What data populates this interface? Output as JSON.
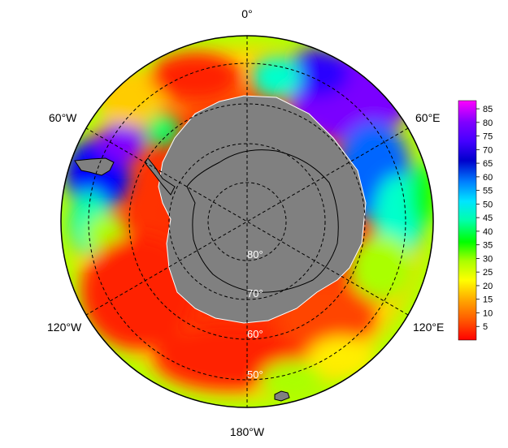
{
  "map": {
    "projection": "south-polar-stereographic",
    "longitude_labels": {
      "top": "0°",
      "upper_right": "60°E",
      "lower_right": "120°E",
      "bottom": "180°W",
      "lower_left": "120°W",
      "upper_left": "60°W"
    },
    "latitude_labels": [
      "80°",
      "70°",
      "60°",
      "50°"
    ],
    "land_color": "#808080",
    "grid": true
  },
  "colorbar": {
    "ticks": [
      "85",
      "80",
      "75",
      "70",
      "65",
      "60",
      "55",
      "50",
      "45",
      "40",
      "35",
      "30",
      "25",
      "20",
      "15",
      "10",
      "5"
    ],
    "range": [
      0,
      88
    ],
    "colors": [
      "#ff0000",
      "#ff5500",
      "#ffaa00",
      "#ffff00",
      "#aaff00",
      "#00ff00",
      "#00ffaa",
      "#00e5ff",
      "#0080ff",
      "#0000cc",
      "#4400ff",
      "#8000ff",
      "#ff00ff"
    ]
  }
}
